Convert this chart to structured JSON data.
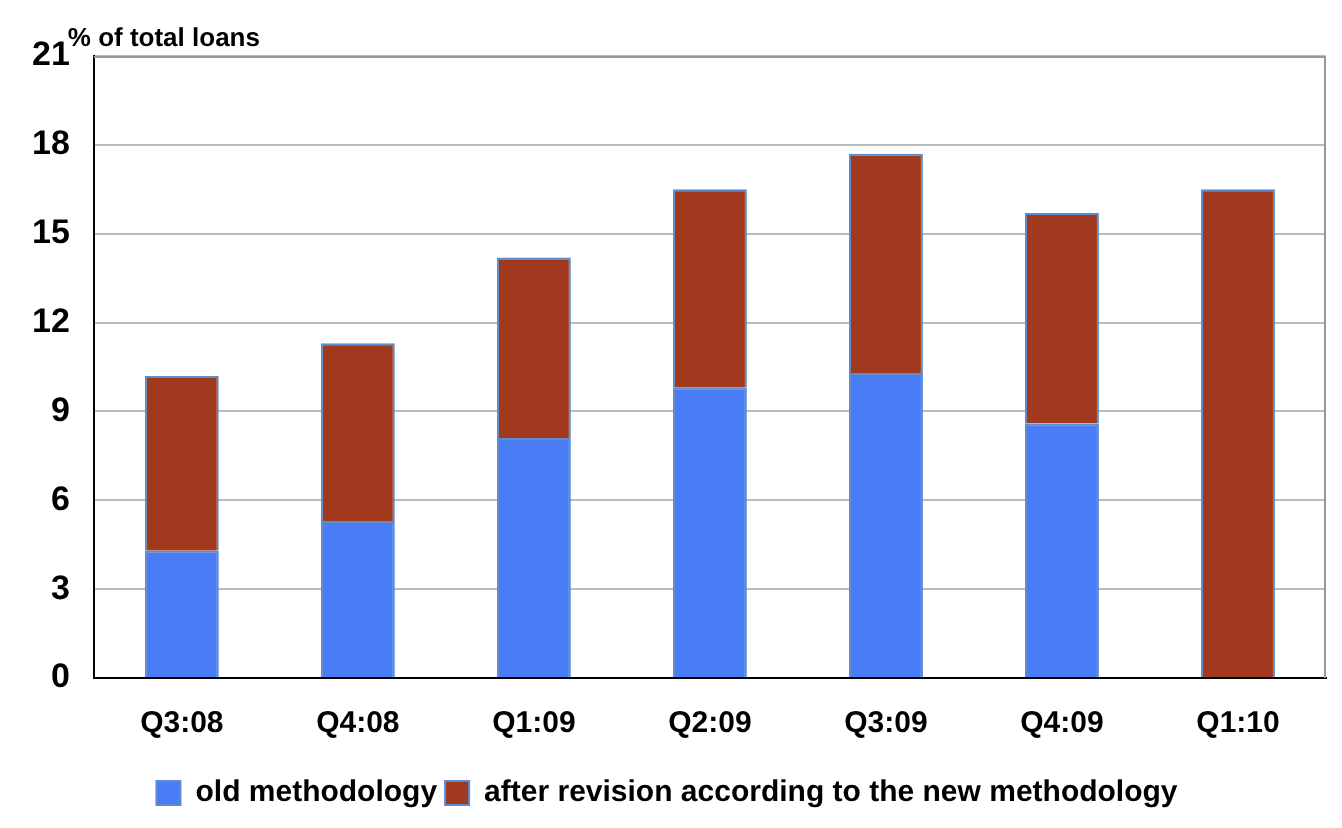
{
  "chart_data": {
    "type": "bar",
    "stacked": true,
    "ylabel": "% of total loans",
    "categories": [
      "Q3:08",
      "Q4:08",
      "Q1:09",
      "Q2:09",
      "Q3:09",
      "Q4:09",
      "Q1:10"
    ],
    "series": [
      {
        "name": "old methodology",
        "color": "#4a7cf5",
        "values": [
          4.3,
          5.3,
          8.1,
          9.8,
          10.3,
          8.6,
          0
        ]
      },
      {
        "name": "after revision according to the new methodology",
        "color": "#a0391e",
        "values": [
          5.9,
          6.0,
          6.1,
          6.7,
          7.4,
          7.1,
          16.5
        ]
      }
    ],
    "ylim": [
      0,
      21
    ],
    "yticks": [
      0,
      3,
      6,
      9,
      12,
      15,
      18,
      21
    ],
    "grid": "y",
    "legend": "bottom"
  }
}
